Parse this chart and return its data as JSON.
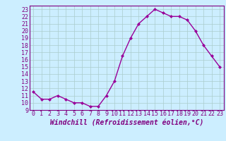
{
  "x": [
    0,
    1,
    2,
    3,
    4,
    5,
    6,
    7,
    8,
    9,
    10,
    11,
    12,
    13,
    14,
    15,
    16,
    17,
    18,
    19,
    20,
    21,
    22,
    23
  ],
  "y": [
    11.5,
    10.5,
    10.5,
    11.0,
    10.5,
    10.0,
    10.0,
    9.5,
    9.5,
    11.0,
    13.0,
    16.5,
    19.0,
    21.0,
    22.0,
    23.0,
    22.5,
    22.0,
    22.0,
    21.5,
    20.0,
    18.0,
    16.5,
    15.0
  ],
  "line_color": "#990099",
  "marker": "D",
  "marker_size": 2,
  "bg_color": "#cceeff",
  "grid_color": "#aacccc",
  "xlabel": "Windchill (Refroidissement éolien,°C)",
  "ylim": [
    9,
    23.5
  ],
  "xlim": [
    -0.5,
    23.5
  ],
  "yticks": [
    9,
    10,
    11,
    12,
    13,
    14,
    15,
    16,
    17,
    18,
    19,
    20,
    21,
    22,
    23
  ],
  "xticks": [
    0,
    1,
    2,
    3,
    4,
    5,
    6,
    7,
    8,
    9,
    10,
    11,
    12,
    13,
    14,
    15,
    16,
    17,
    18,
    19,
    20,
    21,
    22,
    23
  ],
  "tick_color": "#800080",
  "font_size": 6,
  "xlabel_fontsize": 7,
  "lw": 1.0
}
